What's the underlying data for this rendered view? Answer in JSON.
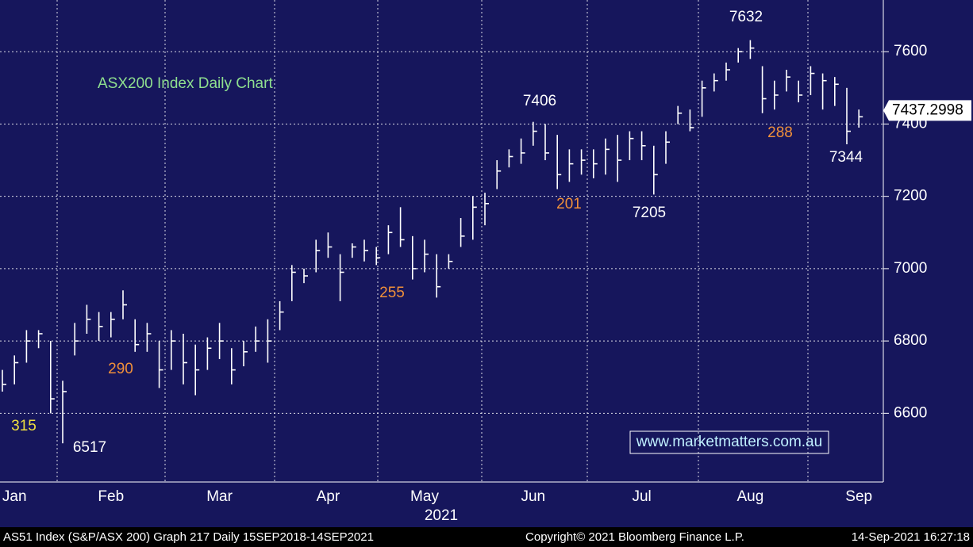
{
  "chart_data": {
    "type": "ohlc",
    "title": "ASX200 Index Daily Chart",
    "watermark": "www.marketmatters.com.au",
    "x_label": "2021",
    "color": "#ffffff",
    "grid": true,
    "categories": [
      null,
      "Jan",
      null,
      null,
      null,
      null,
      null,
      null,
      null,
      "Feb",
      null,
      null,
      null,
      null,
      null,
      null,
      null,
      null,
      "Mar",
      null,
      null,
      null,
      null,
      null,
      null,
      null,
      null,
      "Apr",
      null,
      null,
      null,
      null,
      null,
      null,
      null,
      "May",
      null,
      null,
      null,
      null,
      null,
      null,
      null,
      null,
      "Jun",
      null,
      null,
      null,
      null,
      null,
      null,
      null,
      null,
      "Jul",
      null,
      null,
      null,
      null,
      null,
      null,
      null,
      null,
      "Aug",
      null,
      null,
      null,
      null,
      null,
      null,
      null,
      null,
      "Sep"
    ],
    "high": [
      6720,
      6760,
      6830,
      6830,
      6800,
      6690,
      6850,
      6900,
      6880,
      6880,
      6940,
      6860,
      6850,
      6800,
      6830,
      6820,
      6790,
      6810,
      6850,
      6780,
      6800,
      6840,
      6860,
      6910,
      7010,
      7000,
      7080,
      7100,
      7040,
      7070,
      7080,
      7060,
      7120,
      7170,
      7090,
      7080,
      7040,
      7040,
      7140,
      7200,
      7210,
      7300,
      7330,
      7360,
      7406,
      7400,
      7370,
      7330,
      7330,
      7330,
      7360,
      7370,
      7380,
      7380,
      7340,
      7380,
      7450,
      7440,
      7520,
      7540,
      7570,
      7610,
      7632,
      7560,
      7520,
      7550,
      7520,
      7560,
      7540,
      7530,
      7500,
      7440
    ],
    "low": [
      6660,
      6680,
      6740,
      6780,
      6600,
      6517,
      6760,
      6820,
      6800,
      6810,
      6860,
      6770,
      6770,
      6670,
      6720,
      6680,
      6650,
      6720,
      6750,
      6680,
      6730,
      6770,
      6740,
      6830,
      6910,
      6960,
      6990,
      7030,
      6910,
      7030,
      7020,
      7010,
      7040,
      7060,
      6970,
      6990,
      6920,
      7000,
      7060,
      7080,
      7120,
      7220,
      7280,
      7290,
      7340,
      7300,
      7220,
      7240,
      7260,
      7250,
      7260,
      7240,
      7300,
      7300,
      7205,
      7290,
      7400,
      7380,
      7420,
      7490,
      7520,
      7570,
      7580,
      7430,
      7440,
      7490,
      7460,
      7480,
      7440,
      7450,
      7344,
      7390
    ],
    "close": [
      6680,
      6740,
      6800,
      6820,
      6640,
      6660,
      6800,
      6860,
      6840,
      6860,
      6900,
      6790,
      6820,
      6720,
      6800,
      6740,
      6720,
      6780,
      6800,
      6720,
      6770,
      6800,
      6800,
      6880,
      6990,
      6980,
      7050,
      7060,
      6990,
      7060,
      7050,
      7030,
      7100,
      7080,
      7000,
      7040,
      6950,
      7020,
      7090,
      7170,
      7180,
      7270,
      7310,
      7320,
      7380,
      7320,
      7260,
      7290,
      7300,
      7290,
      7330,
      7300,
      7360,
      7340,
      7260,
      7350,
      7430,
      7390,
      7500,
      7520,
      7550,
      7600,
      7610,
      7470,
      7480,
      7530,
      7480,
      7540,
      7520,
      7510,
      7380,
      7420
    ],
    "last_price": 7437.2998,
    "ylim": [
      6410,
      7743
    ],
    "yticks": [
      6600,
      6800,
      7000,
      7200,
      7400,
      7600
    ],
    "annotations": [
      {
        "text": "7632",
        "color": "#ffffff"
      },
      {
        "text": "7406",
        "color": "#ffffff"
      },
      {
        "text": "7205",
        "color": "#ffffff"
      },
      {
        "text": "7344",
        "color": "#ffffff"
      },
      {
        "text": "6517",
        "color": "#ffffff"
      },
      {
        "text": "315",
        "color": "#f0e040"
      },
      {
        "text": "290",
        "color": "#f0903a"
      },
      {
        "text": "255",
        "color": "#f0903a"
      },
      {
        "text": "201",
        "color": "#f0903a"
      },
      {
        "text": "288",
        "color": "#f0903a"
      }
    ],
    "footer": {
      "left": "AS51 Index (S&P/ASX 200) Graph 217  Daily 15SEP2018-14SEP2021",
      "center": "Copyright© 2021 Bloomberg Finance L.P.",
      "right": "14-Sep-2021 16:27:18"
    }
  }
}
